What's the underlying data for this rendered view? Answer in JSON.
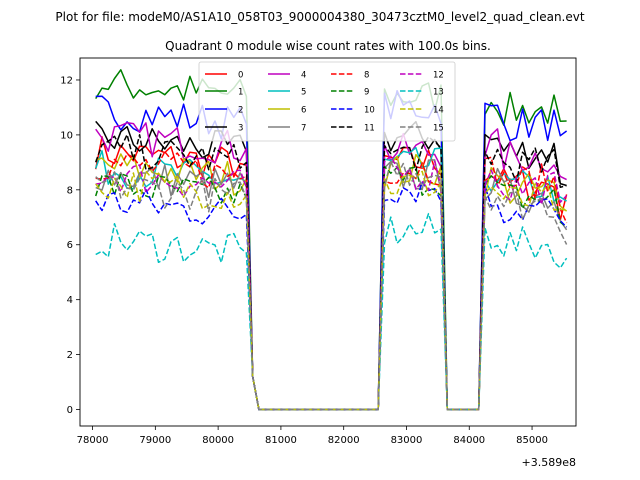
{
  "chart_data": {
    "type": "line",
    "suptitle": "Plot for file: modeM0/AS1A10_058T03_9000004380_30473cztM0_level2_quad_clean.evt",
    "title": "Quadrant 0 module wise count rates with 100.0s bins.",
    "xlabel": "",
    "ylabel": "",
    "offset_text": "+3.589e8",
    "xlim": [
      77800,
      85700
    ],
    "ylim": [
      -0.6,
      12.8
    ],
    "xticks": [
      78000,
      79000,
      80000,
      81000,
      82000,
      83000,
      84000,
      85000
    ],
    "xtick_labels": [
      "78000",
      "79000",
      "80000",
      "81000",
      "82000",
      "83000",
      "84000",
      "85000"
    ],
    "yticks": [
      0,
      2,
      4,
      6,
      8,
      10,
      12
    ],
    "ytick_labels": [
      "0",
      "2",
      "4",
      "6",
      "8",
      "10",
      "12"
    ],
    "legend_position": "upper center",
    "legend_columns": 4,
    "segments": [
      {
        "start": 78050,
        "count": 25,
        "step": 100,
        "tail": [
          1.2,
          0.0
        ]
      },
      {
        "start": 82650,
        "count": 10,
        "step": 100,
        "tail": [
          0.0
        ]
      },
      {
        "start": 84250,
        "count": 14,
        "step": 100,
        "tail": []
      }
    ],
    "series": [
      {
        "name": "0",
        "color": "#ff0000",
        "dash": "solid",
        "levels": [
          9.1,
          9.0,
          8.2
        ]
      },
      {
        "name": "1",
        "color": "#008000",
        "dash": "solid",
        "levels": [
          11.6,
          11.4,
          10.9
        ]
      },
      {
        "name": "2",
        "color": "#0000ff",
        "dash": "solid",
        "levels": [
          10.6,
          11.0,
          10.4
        ]
      },
      {
        "name": "3",
        "color": "#000000",
        "dash": "solid",
        "levels": [
          9.6,
          9.9,
          9.4
        ]
      },
      {
        "name": "4",
        "color": "#bf00bf",
        "dash": "solid",
        "levels": [
          9.7,
          9.4,
          9.2
        ]
      },
      {
        "name": "5",
        "color": "#00bfbf",
        "dash": "solid",
        "levels": [
          8.5,
          8.9,
          8.1
        ]
      },
      {
        "name": "6",
        "color": "#bfbf00",
        "dash": "solid",
        "levels": [
          8.6,
          8.7,
          8.0
        ]
      },
      {
        "name": "7",
        "color": "#808080",
        "dash": "solid",
        "levels": [
          8.3,
          8.5,
          7.8
        ]
      },
      {
        "name": "8",
        "color": "#ff0000",
        "dash": "dashed",
        "levels": [
          8.7,
          8.8,
          8.3
        ]
      },
      {
        "name": "9",
        "color": "#008000",
        "dash": "dashed",
        "levels": [
          7.9,
          8.4,
          7.7
        ]
      },
      {
        "name": "10",
        "color": "#0000ff",
        "dash": "dashed",
        "levels": [
          7.3,
          8.1,
          7.3
        ]
      },
      {
        "name": "11",
        "color": "#000000",
        "dash": "dashed",
        "levels": [
          9.2,
          9.3,
          8.9
        ]
      },
      {
        "name": "12",
        "color": "#bf00bf",
        "dash": "dashed",
        "levels": [
          8.3,
          8.6,
          8.1
        ]
      },
      {
        "name": "13",
        "color": "#00bfbf",
        "dash": "dashed",
        "levels": [
          5.9,
          6.5,
          6.0
        ]
      },
      {
        "name": "14",
        "color": "#bfbf00",
        "dash": "dashed",
        "levels": [
          8.0,
          8.2,
          7.6
        ]
      },
      {
        "name": "15",
        "color": "#808080",
        "dash": "dashed",
        "levels": [
          7.9,
          8.7,
          7.5
        ]
      }
    ]
  }
}
